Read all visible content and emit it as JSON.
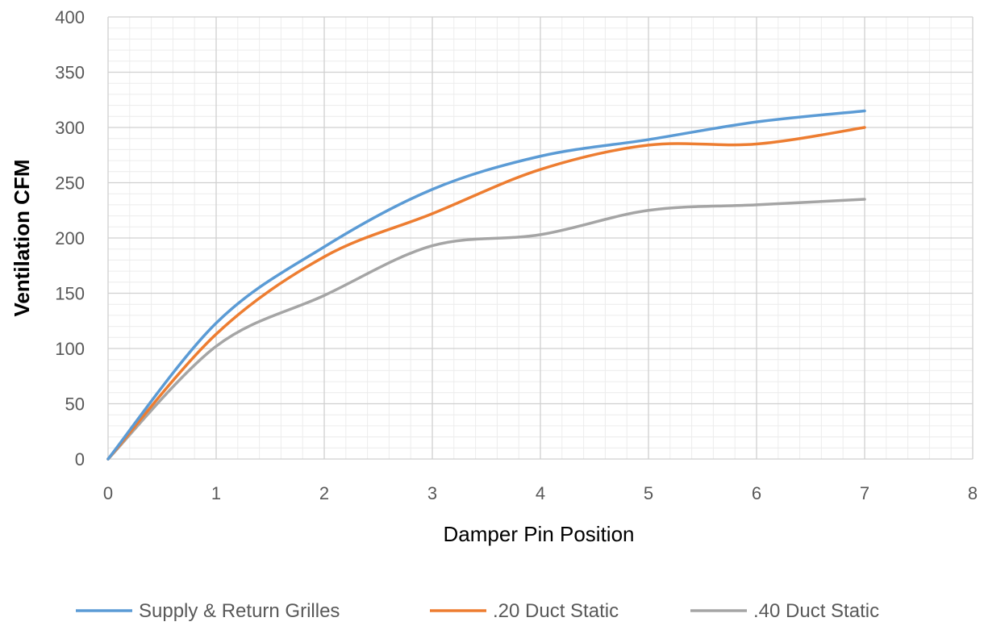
{
  "chart_data": {
    "type": "line",
    "title": "",
    "xlabel": "Damper Pin Position",
    "ylabel": "Ventilation CFM",
    "xlim": [
      0,
      8
    ],
    "ylim": [
      0,
      400
    ],
    "x_ticks": [
      0,
      1,
      2,
      3,
      4,
      5,
      6,
      7,
      8
    ],
    "y_ticks": [
      0,
      50,
      100,
      150,
      200,
      250,
      300,
      350,
      400
    ],
    "grid": {
      "major": true,
      "minor": true
    },
    "smooth": true,
    "legend_position": "bottom",
    "x": [
      0,
      1,
      2,
      3,
      4,
      5,
      6,
      7
    ],
    "series": [
      {
        "name": "Supply & Return Grilles",
        "color": "#5B9BD5",
        "values": [
          0,
          123,
          192,
          244,
          274,
          289,
          305,
          315
        ]
      },
      {
        "name": ".20 Duct Static",
        "color": "#ED7D31",
        "values": [
          0,
          113,
          183,
          222,
          262,
          284,
          285,
          300
        ]
      },
      {
        "name": ".40 Duct Static",
        "color": "#A5A5A5",
        "values": [
          0,
          102,
          148,
          193,
          203,
          225,
          230,
          235
        ]
      }
    ]
  }
}
